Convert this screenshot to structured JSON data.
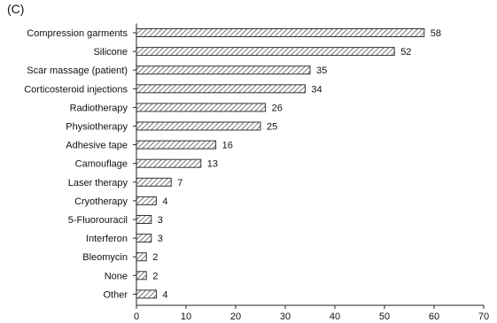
{
  "panel_label": "(C)",
  "chart_data": {
    "type": "bar",
    "orientation": "horizontal",
    "categories": [
      "Compression garments",
      "Silicone",
      "Scar massage (patient)",
      "Corticosteroid injections",
      "Radiotherapy",
      "Physiotherapy",
      "Adhesive tape",
      "Camouflage",
      "Laser therapy",
      "Cryotherapy",
      "5-Fluorouracil",
      "Interferon",
      "Bleomycin",
      "None",
      "Other"
    ],
    "values": [
      58,
      52,
      35,
      34,
      26,
      25,
      16,
      13,
      7,
      4,
      3,
      3,
      2,
      2,
      4
    ],
    "data_labels": [
      "58",
      "52",
      "35",
      "34",
      "26",
      "25",
      "16",
      "13",
      "7",
      "4",
      "3",
      "3",
      "2",
      "2",
      "4"
    ],
    "xlim": [
      0,
      70
    ],
    "xticks": [
      0,
      10,
      20,
      30,
      40,
      50,
      60,
      70
    ],
    "xtick_labels": [
      "0",
      "10",
      "20",
      "30",
      "40",
      "50",
      "60",
      "70"
    ],
    "title": "",
    "xlabel": "",
    "ylabel": "",
    "bar_fill": "hatched",
    "bar_color": "#555555",
    "grid": false,
    "legend": "none"
  }
}
